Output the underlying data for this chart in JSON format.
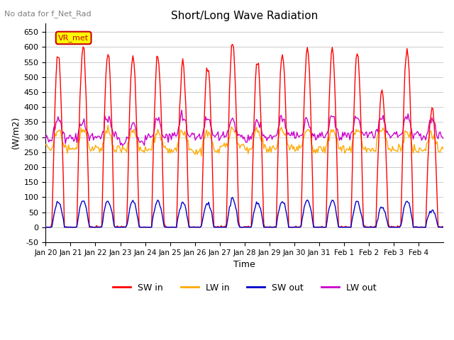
{
  "title": "Short/Long Wave Radiation",
  "subtitle": "No data for f_Net_Rad",
  "ylabel": "(W/m2)",
  "xlabel": "Time",
  "ylim": [
    -50,
    680
  ],
  "yticks": [
    -50,
    0,
    50,
    100,
    150,
    200,
    250,
    300,
    350,
    400,
    450,
    500,
    550,
    600,
    650
  ],
  "xtick_labels": [
    "Jan 20",
    "Jan 21",
    "Jan 22",
    "Jan 23",
    "Jan 24",
    "Jan 25",
    "Jan 26",
    "Jan 27",
    "Jan 28",
    "Jan 29",
    "Jan 30",
    "Jan 31",
    "Feb 1",
    "Feb 2",
    "Feb 3",
    "Feb 4"
  ],
  "legend_labels": [
    "SW in",
    "LW in",
    "SW out",
    "LW out"
  ],
  "legend_colors": [
    "#ff0000",
    "#ffaa00",
    "#0000cc",
    "#cc00cc"
  ],
  "sw_in_color": "#ff0000",
  "lw_in_color": "#ffaa00",
  "sw_out_color": "#0000cc",
  "lw_out_color": "#cc00cc",
  "vr_met_box_color": "#ffff00",
  "vr_met_text_color": "#cc0000",
  "background_color": "#ffffff",
  "grid_color": "#cccccc",
  "figsize": [
    6.4,
    4.8
  ],
  "dpi": 100
}
